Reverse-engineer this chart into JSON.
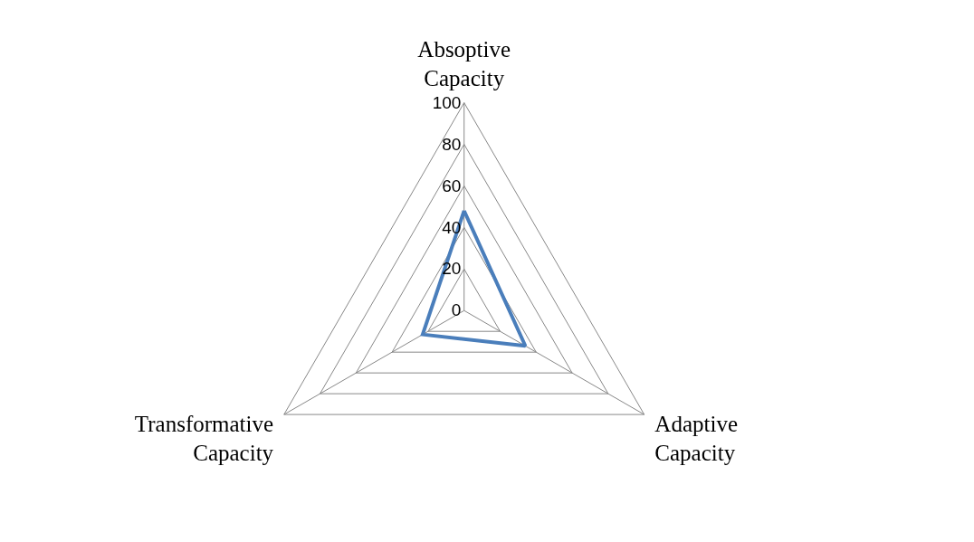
{
  "chart_data": {
    "type": "radar",
    "categories": [
      "Absoptive\nCapacity",
      "Adaptive\nCapacity",
      "Transformative\nCapacity"
    ],
    "series": [
      {
        "color": "#4a7ebb",
        "values": [
          48,
          34,
          23
        ]
      }
    ],
    "ylim": [
      0,
      100
    ],
    "yticks": [
      0,
      20,
      40,
      60,
      80,
      100
    ],
    "grid": true
  }
}
